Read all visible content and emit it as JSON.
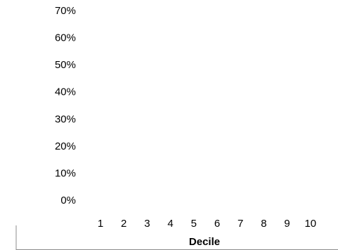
{
  "chart_data": {
    "type": "bar",
    "title": "",
    "xlabel": "Decile",
    "ylabel": "",
    "categories": [
      "1",
      "2",
      "3",
      "4",
      "5",
      "6",
      "7",
      "8",
      "9",
      "10"
    ],
    "series": [
      {
        "values": [
          null,
          null,
          null,
          null,
          null,
          null,
          null,
          null,
          null,
          null
        ]
      }
    ],
    "ylim": [
      0,
      0.7
    ],
    "y_ticks": [
      "70%",
      "60%",
      "50%",
      "40%",
      "30%",
      "20%",
      "10%",
      "0%"
    ],
    "grid": false,
    "legend": "none",
    "frame_color": "#8c8c8c"
  }
}
